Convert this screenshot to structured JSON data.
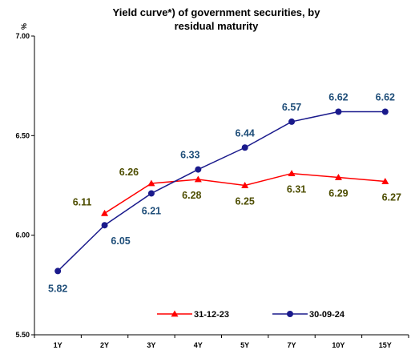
{
  "chart_data": {
    "type": "line",
    "title": "Yield curve*) of government securities, by residual maturity",
    "title_lines": [
      "Yield curve*) of government securities, by",
      "residual maturity"
    ],
    "ylabel": "%",
    "xlabel": "",
    "categories": [
      "1Y",
      "2Y",
      "3Y",
      "4Y",
      "5Y",
      "7Y",
      "10Y",
      "15Y"
    ],
    "ylim": [
      5.5,
      7.0
    ],
    "yticks": [
      "5.50",
      "6.00",
      "6.50",
      "7.00"
    ],
    "grid": false,
    "legend_position": "bottom",
    "series": [
      {
        "name": "31-12-23",
        "color": "#ff0000",
        "label_color": "#4d4d00",
        "marker": "triangle",
        "values": [
          null,
          6.11,
          6.26,
          6.28,
          6.25,
          6.31,
          6.29,
          6.27
        ],
        "labels": [
          "",
          "6.11",
          "6.26",
          "6.28",
          "6.25",
          "6.31",
          "6.29",
          "6.27"
        ]
      },
      {
        "name": "30-09-24",
        "color": "#1a1a8c",
        "label_color": "#1f4e79",
        "marker": "circle",
        "values": [
          5.82,
          6.05,
          6.21,
          6.33,
          6.44,
          6.57,
          6.62,
          6.62
        ],
        "labels": [
          "5.82",
          "6.05",
          "6.21",
          "6.33",
          "6.44",
          "6.57",
          "6.62",
          "6.62"
        ]
      }
    ]
  }
}
